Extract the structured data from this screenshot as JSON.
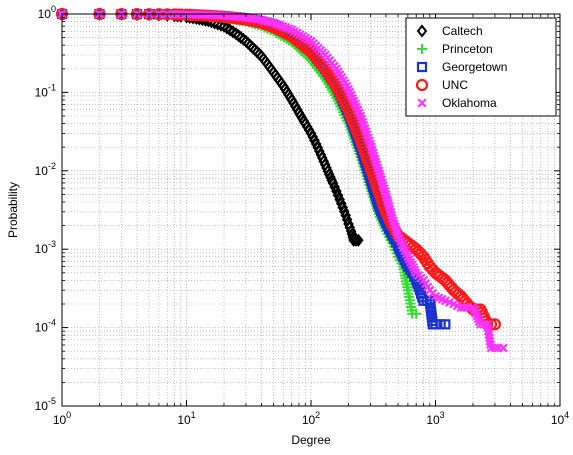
{
  "chart_data": {
    "type": "scatter",
    "xscale": "log",
    "yscale": "log",
    "xlim": [
      1,
      10000
    ],
    "ylim": [
      1e-05,
      1
    ],
    "grid": true,
    "legend_position": "top-right",
    "xlabel": "Degree",
    "ylabel": "Probability",
    "x_ticks": [
      {
        "base": "10",
        "exp": "0",
        "value": 1
      },
      {
        "base": "10",
        "exp": "1",
        "value": 10
      },
      {
        "base": "10",
        "exp": "2",
        "value": 100
      },
      {
        "base": "10",
        "exp": "3",
        "value": 1000
      },
      {
        "base": "10",
        "exp": "4",
        "value": 10000
      }
    ],
    "y_ticks": [
      {
        "base": "10",
        "exp": "0",
        "value": 1
      },
      {
        "base": "10",
        "exp": "-1",
        "value": 0.1
      },
      {
        "base": "10",
        "exp": "-2",
        "value": 0.01
      },
      {
        "base": "10",
        "exp": "-3",
        "value": 0.001
      },
      {
        "base": "10",
        "exp": "-4",
        "value": 0.0001
      },
      {
        "base": "10",
        "exp": "-5",
        "value": 1e-05
      }
    ],
    "series": [
      {
        "name": "Caltech",
        "marker": "diamond",
        "color": "#000000",
        "x": [
          1,
          2,
          3,
          4,
          5,
          6,
          7,
          8,
          9,
          10,
          12,
          15,
          20,
          25,
          30,
          40,
          50,
          60,
          70,
          80,
          90,
          100,
          110,
          120,
          130,
          140,
          150,
          160,
          170,
          180,
          190,
          200,
          210,
          220,
          230,
          240
        ],
        "y": [
          1,
          0.998,
          0.995,
          0.99,
          0.985,
          0.975,
          0.965,
          0.95,
          0.94,
          0.92,
          0.88,
          0.82,
          0.7,
          0.56,
          0.45,
          0.29,
          0.18,
          0.12,
          0.08,
          0.055,
          0.04,
          0.03,
          0.022,
          0.016,
          0.012,
          0.009,
          0.007,
          0.0055,
          0.0043,
          0.0034,
          0.0027,
          0.0021,
          0.0017,
          0.0013,
          0.0013,
          0.0013
        ]
      },
      {
        "name": "Princeton",
        "marker": "plus",
        "color": "#33dd33",
        "x": [
          1,
          2,
          3,
          4,
          5,
          6,
          7,
          8,
          9,
          10,
          15,
          20,
          30,
          40,
          50,
          70,
          100,
          130,
          160,
          200,
          250,
          300,
          350,
          400,
          450,
          500,
          550,
          600,
          650,
          700
        ],
        "y": [
          1,
          0.999,
          0.997,
          0.995,
          0.993,
          0.99,
          0.985,
          0.98,
          0.975,
          0.97,
          0.93,
          0.89,
          0.8,
          0.7,
          0.6,
          0.44,
          0.26,
          0.15,
          0.085,
          0.04,
          0.015,
          0.006,
          0.0028,
          0.0017,
          0.0012,
          0.0008,
          0.0006,
          0.0003,
          0.00015,
          0.00015
        ]
      },
      {
        "name": "Georgetown",
        "marker": "square",
        "color": "#1a33cc",
        "x": [
          1,
          2,
          3,
          4,
          5,
          6,
          7,
          8,
          9,
          10,
          15,
          20,
          30,
          40,
          50,
          70,
          100,
          130,
          160,
          200,
          250,
          300,
          350,
          400,
          450,
          500,
          550,
          600,
          650,
          700,
          750,
          800,
          850,
          900,
          950,
          1000,
          1100,
          1200
        ],
        "y": [
          1,
          0.999,
          0.998,
          0.996,
          0.994,
          0.992,
          0.99,
          0.988,
          0.985,
          0.98,
          0.96,
          0.94,
          0.88,
          0.8,
          0.72,
          0.55,
          0.34,
          0.2,
          0.12,
          0.055,
          0.02,
          0.008,
          0.0036,
          0.0022,
          0.0015,
          0.0011,
          0.0008,
          0.0006,
          0.0005,
          0.0004,
          0.0003,
          0.00022,
          0.00022,
          0.00022,
          0.00011,
          0.00011,
          0.00011,
          0.00011
        ]
      },
      {
        "name": "UNC",
        "marker": "circle",
        "color": "#ff1a1a",
        "x": [
          1,
          2,
          3,
          4,
          5,
          6,
          7,
          8,
          9,
          10,
          15,
          20,
          30,
          40,
          50,
          70,
          100,
          130,
          160,
          200,
          250,
          300,
          350,
          400,
          450,
          500,
          600,
          700,
          800,
          900,
          1000,
          1200,
          1400,
          1600,
          1800,
          2000,
          2300,
          2600,
          3000
        ],
        "y": [
          1,
          0.999,
          0.998,
          0.996,
          0.994,
          0.992,
          0.99,
          0.986,
          0.982,
          0.978,
          0.95,
          0.92,
          0.85,
          0.77,
          0.68,
          0.52,
          0.33,
          0.2,
          0.12,
          0.06,
          0.025,
          0.011,
          0.0055,
          0.003,
          0.002,
          0.0015,
          0.0012,
          0.001,
          0.0008,
          0.0006,
          0.0005,
          0.0004,
          0.0003,
          0.00025,
          0.0002,
          0.00017,
          0.00017,
          0.00011,
          0.00011
        ]
      },
      {
        "name": "Oklahoma",
        "marker": "x",
        "color": "#ff33ff",
        "x": [
          1,
          2,
          3,
          4,
          5,
          6,
          7,
          8,
          9,
          10,
          15,
          20,
          30,
          40,
          50,
          70,
          100,
          130,
          160,
          200,
          250,
          300,
          350,
          400,
          450,
          500,
          600,
          700,
          800,
          900,
          1000,
          1200,
          1400,
          1600,
          1800,
          2000,
          2300,
          2600,
          2800,
          3000,
          3200,
          3500
        ],
        "y": [
          1,
          0.999,
          0.998,
          0.997,
          0.996,
          0.994,
          0.992,
          0.99,
          0.988,
          0.985,
          0.97,
          0.95,
          0.9,
          0.84,
          0.77,
          0.63,
          0.45,
          0.3,
          0.2,
          0.11,
          0.05,
          0.022,
          0.01,
          0.005,
          0.0025,
          0.0015,
          0.0008,
          0.0005,
          0.0004,
          0.0003,
          0.00025,
          0.00022,
          0.0002,
          0.00018,
          0.00018,
          0.00018,
          0.00011,
          0.00011,
          5.5e-05,
          5.5e-05,
          5.5e-05,
          5.5e-05
        ]
      }
    ]
  }
}
